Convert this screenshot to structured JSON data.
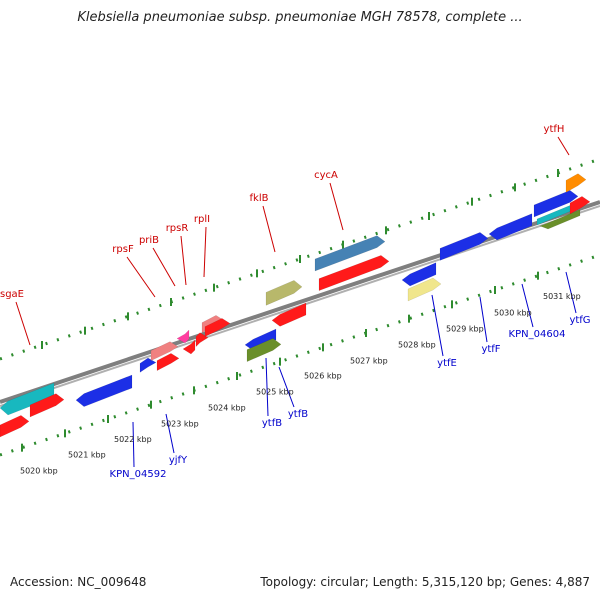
{
  "title": "Klebsiella pneumoniae subsp. pneumoniae MGH 78578, complete ...",
  "footer": {
    "accession": "Accession: NC_009648",
    "summary": "Topology: circular; Length: 5,315,120 bp; Genes: 4,887"
  },
  "colors": {
    "backbone": "#7f7f7f",
    "tick": "#2e8b2e",
    "label_top": "#cc0000",
    "label_bottom": "#0000cc"
  },
  "scale_labels": [
    "5020 kbp",
    "5021 kbp",
    "5022 kbp",
    "5023 kbp",
    "5024 kbp",
    "5025 kbp",
    "5026 kbp",
    "5027 kbp",
    "5028 kbp",
    "5029 kbp",
    "5030 kbp",
    "5031 kbp"
  ],
  "top_labels": [
    "sgaE",
    "rpsF",
    "priB",
    "rpsR",
    "rplI",
    "fklB",
    "cycA",
    "ytfH"
  ],
  "bottom_labels": [
    "KPN_04592",
    "yjfY",
    "ytfB",
    "ytfB",
    "ytfE",
    "ytfF",
    "KPN_04604",
    "ytfG"
  ]
}
